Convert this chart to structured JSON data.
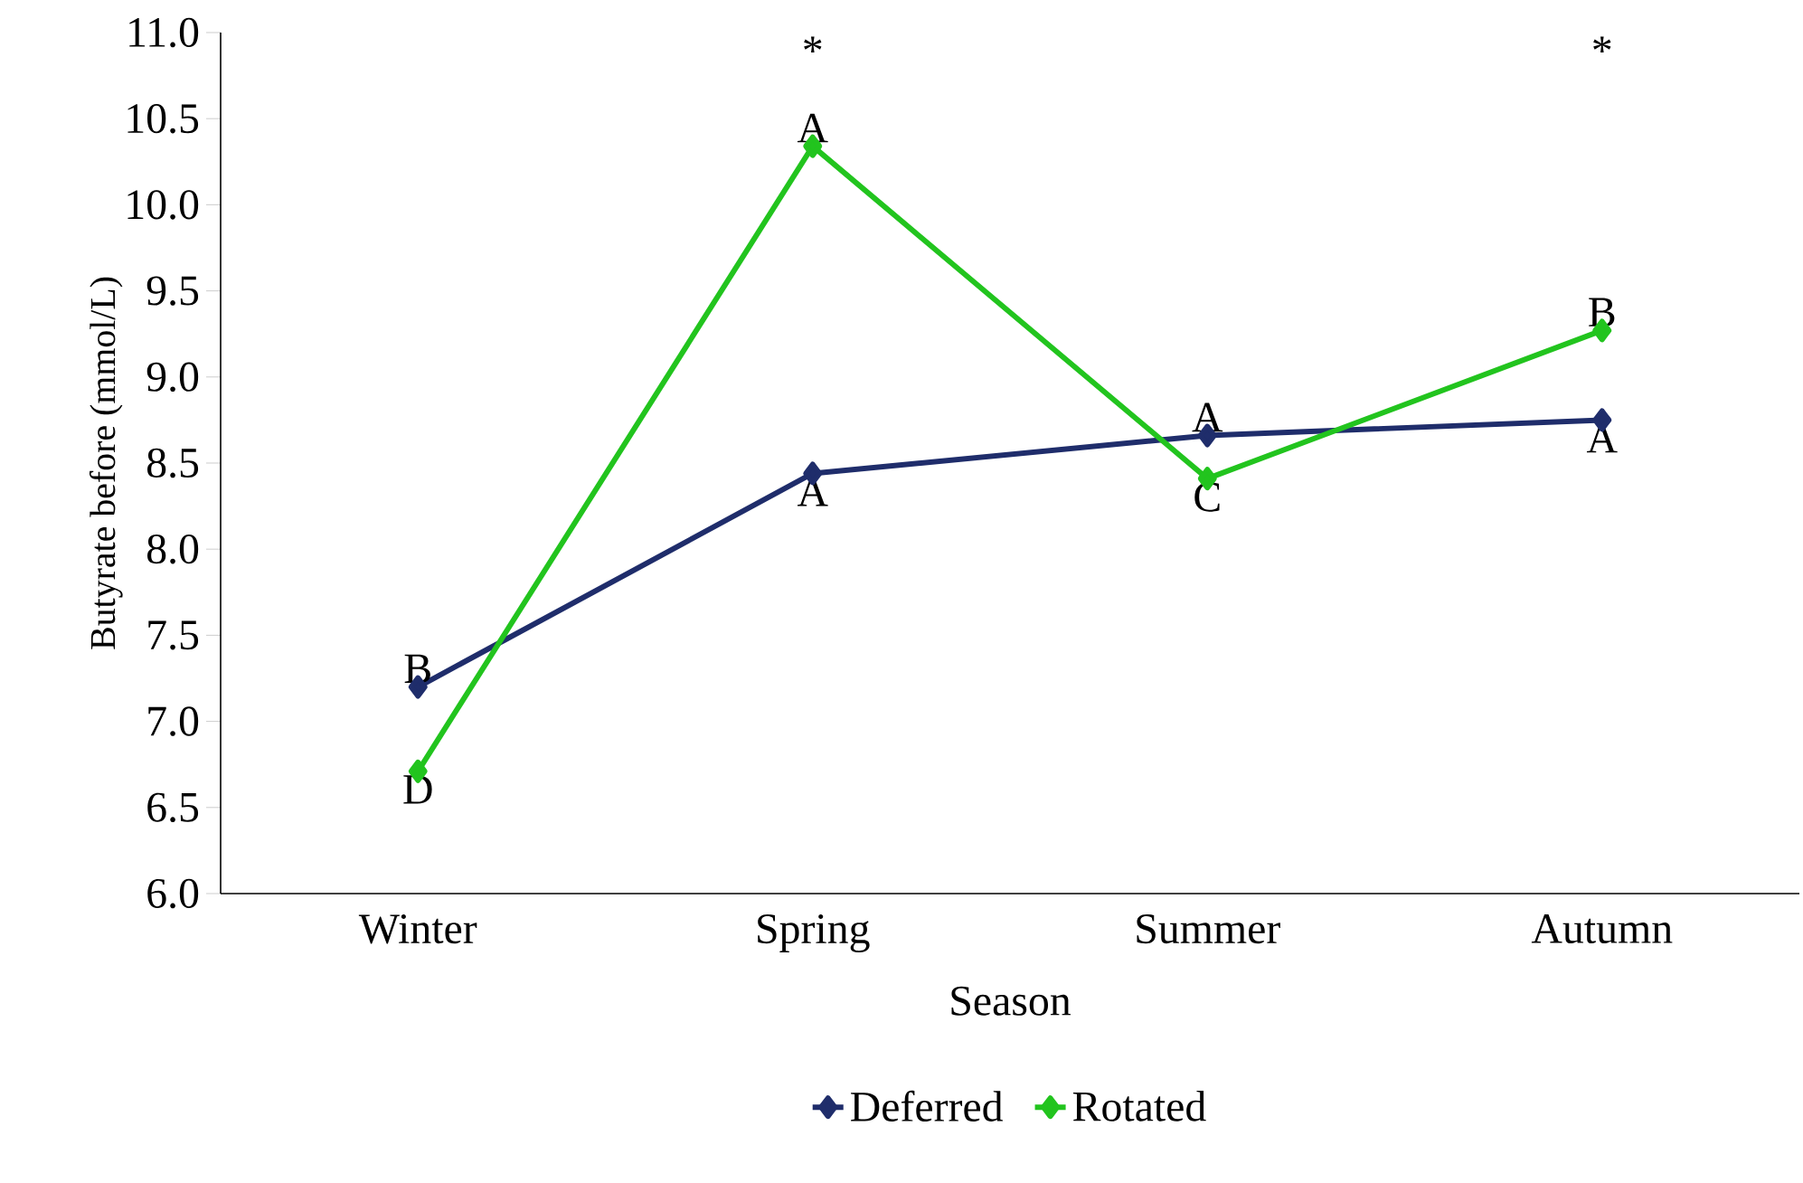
{
  "chart_data": {
    "type": "line",
    "xlabel": "Season",
    "ylabel": "Butyrate before (mmol/L)",
    "categories": [
      "Winter",
      "Spring",
      "Summer",
      "Autumn"
    ],
    "series": [
      {
        "name": "Deferred",
        "color": "#1f2d6b",
        "values": [
          7.2,
          8.44,
          8.66,
          8.75
        ]
      },
      {
        "name": "Rotated",
        "color": "#22c41e",
        "values": [
          6.71,
          10.34,
          8.41,
          9.27
        ]
      }
    ],
    "ylim": [
      6,
      11
    ],
    "yticks": [
      {
        "value": 6,
        "label": "6.0"
      },
      {
        "value": 6.5,
        "label": "6.5"
      },
      {
        "value": 7,
        "label": "7.0"
      },
      {
        "value": 7.5,
        "label": "7.5"
      },
      {
        "value": 8,
        "label": "8.0"
      },
      {
        "value": 8.5,
        "label": "8.5"
      },
      {
        "value": 9,
        "label": "9.0"
      },
      {
        "value": 9.5,
        "label": "9.5"
      },
      {
        "value": 10,
        "label": "10.0"
      },
      {
        "value": 10.5,
        "label": "10.5"
      },
      {
        "value": 11,
        "label": "11.0"
      }
    ],
    "marker": "diamond",
    "line_style": "solid",
    "grid": false,
    "legend": "bottom",
    "annotations": [
      {
        "text": "B",
        "x": "Winter",
        "y": 7.2
      },
      {
        "text": "D",
        "x": "Winter",
        "y": 6.71
      },
      {
        "text": "A",
        "x": "Spring",
        "y": 10.34
      },
      {
        "text": "A",
        "x": "Spring",
        "y": 8.44
      },
      {
        "text": "A",
        "x": "Summer",
        "y": 8.66
      },
      {
        "text": "C",
        "x": "Summer",
        "y": 8.41
      },
      {
        "text": "B",
        "x": "Autumn",
        "y": 9.27
      },
      {
        "text": "A",
        "x": "Autumn",
        "y": 8.75
      },
      "*",
      "*"
    ]
  }
}
